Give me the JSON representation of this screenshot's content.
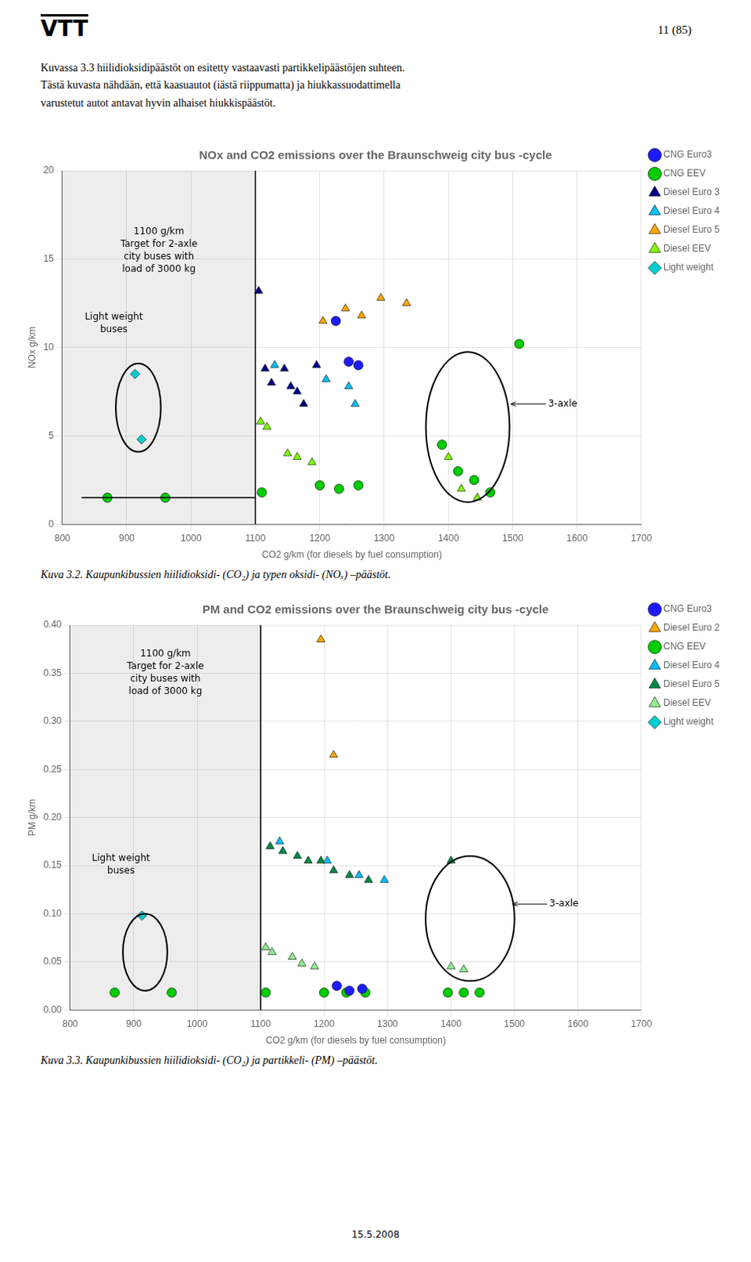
{
  "logo_text": "VTT",
  "header_text": "11 (85)",
  "body_text": "Kuvassa 3.3 hiilidioksidipäästöt on esitetty vastaavasti partikkelipäästöjen suhteen.\nTästä kuvasta nähdään, että kaasuautot (iästä riippumatta) ja hiukkassuodattimella\nvarustetut autot antavat hyvin alhaiset hiukkispäästöt.",
  "date_text": "15.5.2008",
  "chart_data": [
    {
      "type": "scatter",
      "title": "NOx and CO2 emissions over the Braunschweig city bus -cycle",
      "xlabel": "CO2 g/km (for diesels by fuel consumption)",
      "ylabel": "NOx g/km",
      "caption": "Kuva 3.2. Kaupunkibussien hiilidioksidi- (CO₂) ja typen oksidi- (NOₓ) –päästöt.",
      "xlim": [
        800,
        1700
      ],
      "ylim": [
        0,
        20
      ],
      "xticks": [
        800,
        900,
        1000,
        1100,
        1200,
        1300,
        1400,
        1500,
        1600,
        1700
      ],
      "yticks": [
        0,
        5,
        10,
        15,
        20
      ],
      "grid": true,
      "legend": "upper right",
      "vline": 1100,
      "hline": {
        "y": 1.5,
        "x_from": 830,
        "x_to": 1100
      },
      "ellipses": [
        {
          "cx": 918,
          "cy": 6.6,
          "w": 70,
          "h": 5.0
        },
        {
          "cx": 1430,
          "cy": 5.5,
          "w": 130,
          "h": 8.5
        }
      ],
      "annotations": [
        {
          "text": "1100 g/km\nTarget for 2-axle\ncity buses with\nload of 3000 kg",
          "x": 950,
          "y": 16.8
        },
        {
          "text": "Light weight\nbuses",
          "x": 880,
          "y": 12.0
        },
        {
          "text": "3-axle",
          "x": 1555,
          "y": 6.8,
          "arrow_to": [
            1497,
            6.8
          ]
        }
      ],
      "series": [
        {
          "name": "CNG Euro3",
          "color": "#1C1CFF",
          "marker": "circle",
          "x": [
            1225,
            1245,
            1260
          ],
          "values": [
            11.5,
            9.2,
            9.0
          ]
        },
        {
          "name": "CNG EEV",
          "color": "#00CC00",
          "marker": "circle",
          "x": [
            870,
            960,
            1110,
            1200,
            1230,
            1260,
            1390,
            1415,
            1440,
            1465,
            1510
          ],
          "values": [
            1.5,
            1.5,
            1.8,
            2.2,
            2.0,
            2.2,
            4.5,
            3.0,
            2.5,
            1.8,
            10.2
          ]
        },
        {
          "name": "Diesel Euro 3",
          "color": "#00008B",
          "marker": "triangle",
          "x": [
            1105,
            1115,
            1125,
            1145,
            1155,
            1165,
            1175,
            1195
          ],
          "values": [
            13.2,
            8.8,
            8.0,
            8.8,
            7.8,
            7.5,
            6.8,
            9.0
          ]
        },
        {
          "name": "Diesel Euro 4",
          "color": "#00BFFF",
          "marker": "triangle",
          "x": [
            1130,
            1210,
            1245,
            1255
          ],
          "values": [
            9.0,
            8.2,
            7.8,
            6.8
          ]
        },
        {
          "name": "Diesel Euro 5",
          "color": "#FFA500",
          "marker": "triangle",
          "x": [
            1205,
            1240,
            1265,
            1295,
            1335
          ],
          "values": [
            11.5,
            12.2,
            11.8,
            12.8,
            12.5
          ]
        },
        {
          "name": "Diesel EEV",
          "color": "#7CFC00",
          "marker": "triangle",
          "x": [
            1108,
            1118,
            1150,
            1165,
            1188,
            1400,
            1420,
            1445
          ],
          "values": [
            5.8,
            5.5,
            4.0,
            3.8,
            3.5,
            3.8,
            2.0,
            1.5
          ]
        },
        {
          "name": "Light weight",
          "color": "#00CED1",
          "marker": "diamond",
          "x": [
            913,
            923
          ],
          "values": [
            8.5,
            4.8
          ]
        }
      ]
    },
    {
      "type": "scatter",
      "title": "PM and CO2 emissions over the Braunschweig city bus -cycle",
      "xlabel": "CO2 g/km (for diesels by fuel consumption)",
      "ylabel": "PM g/km",
      "caption": "Kuva 3.3. Kaupunkibussien hiilidioksidi- (CO₂) ja partikkeli- (PM) –päästöt.",
      "xlim": [
        800,
        1700
      ],
      "ylim": [
        0,
        0.4
      ],
      "xticks": [
        800,
        900,
        1000,
        1100,
        1200,
        1300,
        1400,
        1500,
        1600,
        1700
      ],
      "yticks": [
        {
          "value": 0,
          "label": "0.00"
        },
        0.05,
        {
          "value": 0.1,
          "label": "0.10"
        },
        0.15,
        {
          "value": 0.2,
          "label": "0.20"
        },
        0.25,
        {
          "value": 0.3,
          "label": "0.30"
        },
        0.35,
        {
          "value": 0.4,
          "label": "0.40"
        }
      ],
      "grid": true,
      "legend": "upper right",
      "vline": 1100,
      "ellipses": [
        {
          "cx": 918,
          "cy": 0.06,
          "w": 70,
          "h": 0.08
        },
        {
          "cx": 1430,
          "cy": 0.095,
          "w": 140,
          "h": 0.13
        }
      ],
      "annotations": [
        {
          "text": "1100 g/km\nTarget for 2-axle\ncity buses with\nload of 3000 kg",
          "x": 950,
          "y": 0.375
        },
        {
          "text": "Light weight\nbuses",
          "x": 880,
          "y": 0.162
        },
        {
          "text": "3-axle",
          "x": 1555,
          "y": 0.11,
          "arrow_to": [
            1497,
            0.11
          ]
        }
      ],
      "series": [
        {
          "name": "CNG Euro3",
          "color": "#1C1CFF",
          "marker": "circle",
          "x": [
            1220,
            1240,
            1260
          ],
          "values": [
            0.025,
            0.02,
            0.022
          ]
        },
        {
          "name": "Diesel Euro 2",
          "color": "#FFA500",
          "marker": "triangle",
          "x": [
            1195,
            1215
          ],
          "values": [
            0.385,
            0.265
          ]
        },
        {
          "name": "CNG EEV",
          "color": "#00CC00",
          "marker": "circle",
          "x": [
            870,
            960,
            1108,
            1200,
            1235,
            1265,
            1395,
            1420,
            1445
          ],
          "values": [
            0.018,
            0.018,
            0.018,
            0.018,
            0.018,
            0.018,
            0.018,
            0.018,
            0.018
          ]
        },
        {
          "name": "Diesel Euro 4",
          "color": "#00BFFF",
          "marker": "triangle",
          "x": [
            1130,
            1205,
            1255,
            1295
          ],
          "values": [
            0.175,
            0.155,
            0.14,
            0.135
          ]
        },
        {
          "name": "Diesel Euro 5",
          "color": "#008B45",
          "marker": "triangle",
          "x": [
            1115,
            1135,
            1158,
            1175,
            1195,
            1215,
            1240,
            1270,
            1400
          ],
          "values": [
            0.17,
            0.165,
            0.16,
            0.155,
            0.155,
            0.145,
            0.14,
            0.135,
            0.155
          ]
        },
        {
          "name": "Diesel EEV",
          "color": "#90EE90",
          "marker": "triangle",
          "x": [
            1108,
            1118,
            1150,
            1165,
            1185,
            1400,
            1420
          ],
          "values": [
            0.065,
            0.06,
            0.055,
            0.048,
            0.045,
            0.045,
            0.042
          ]
        },
        {
          "name": "Light weight",
          "color": "#00CED1",
          "marker": "diamond",
          "x": [
            913
          ],
          "values": [
            0.098
          ]
        }
      ]
    }
  ]
}
